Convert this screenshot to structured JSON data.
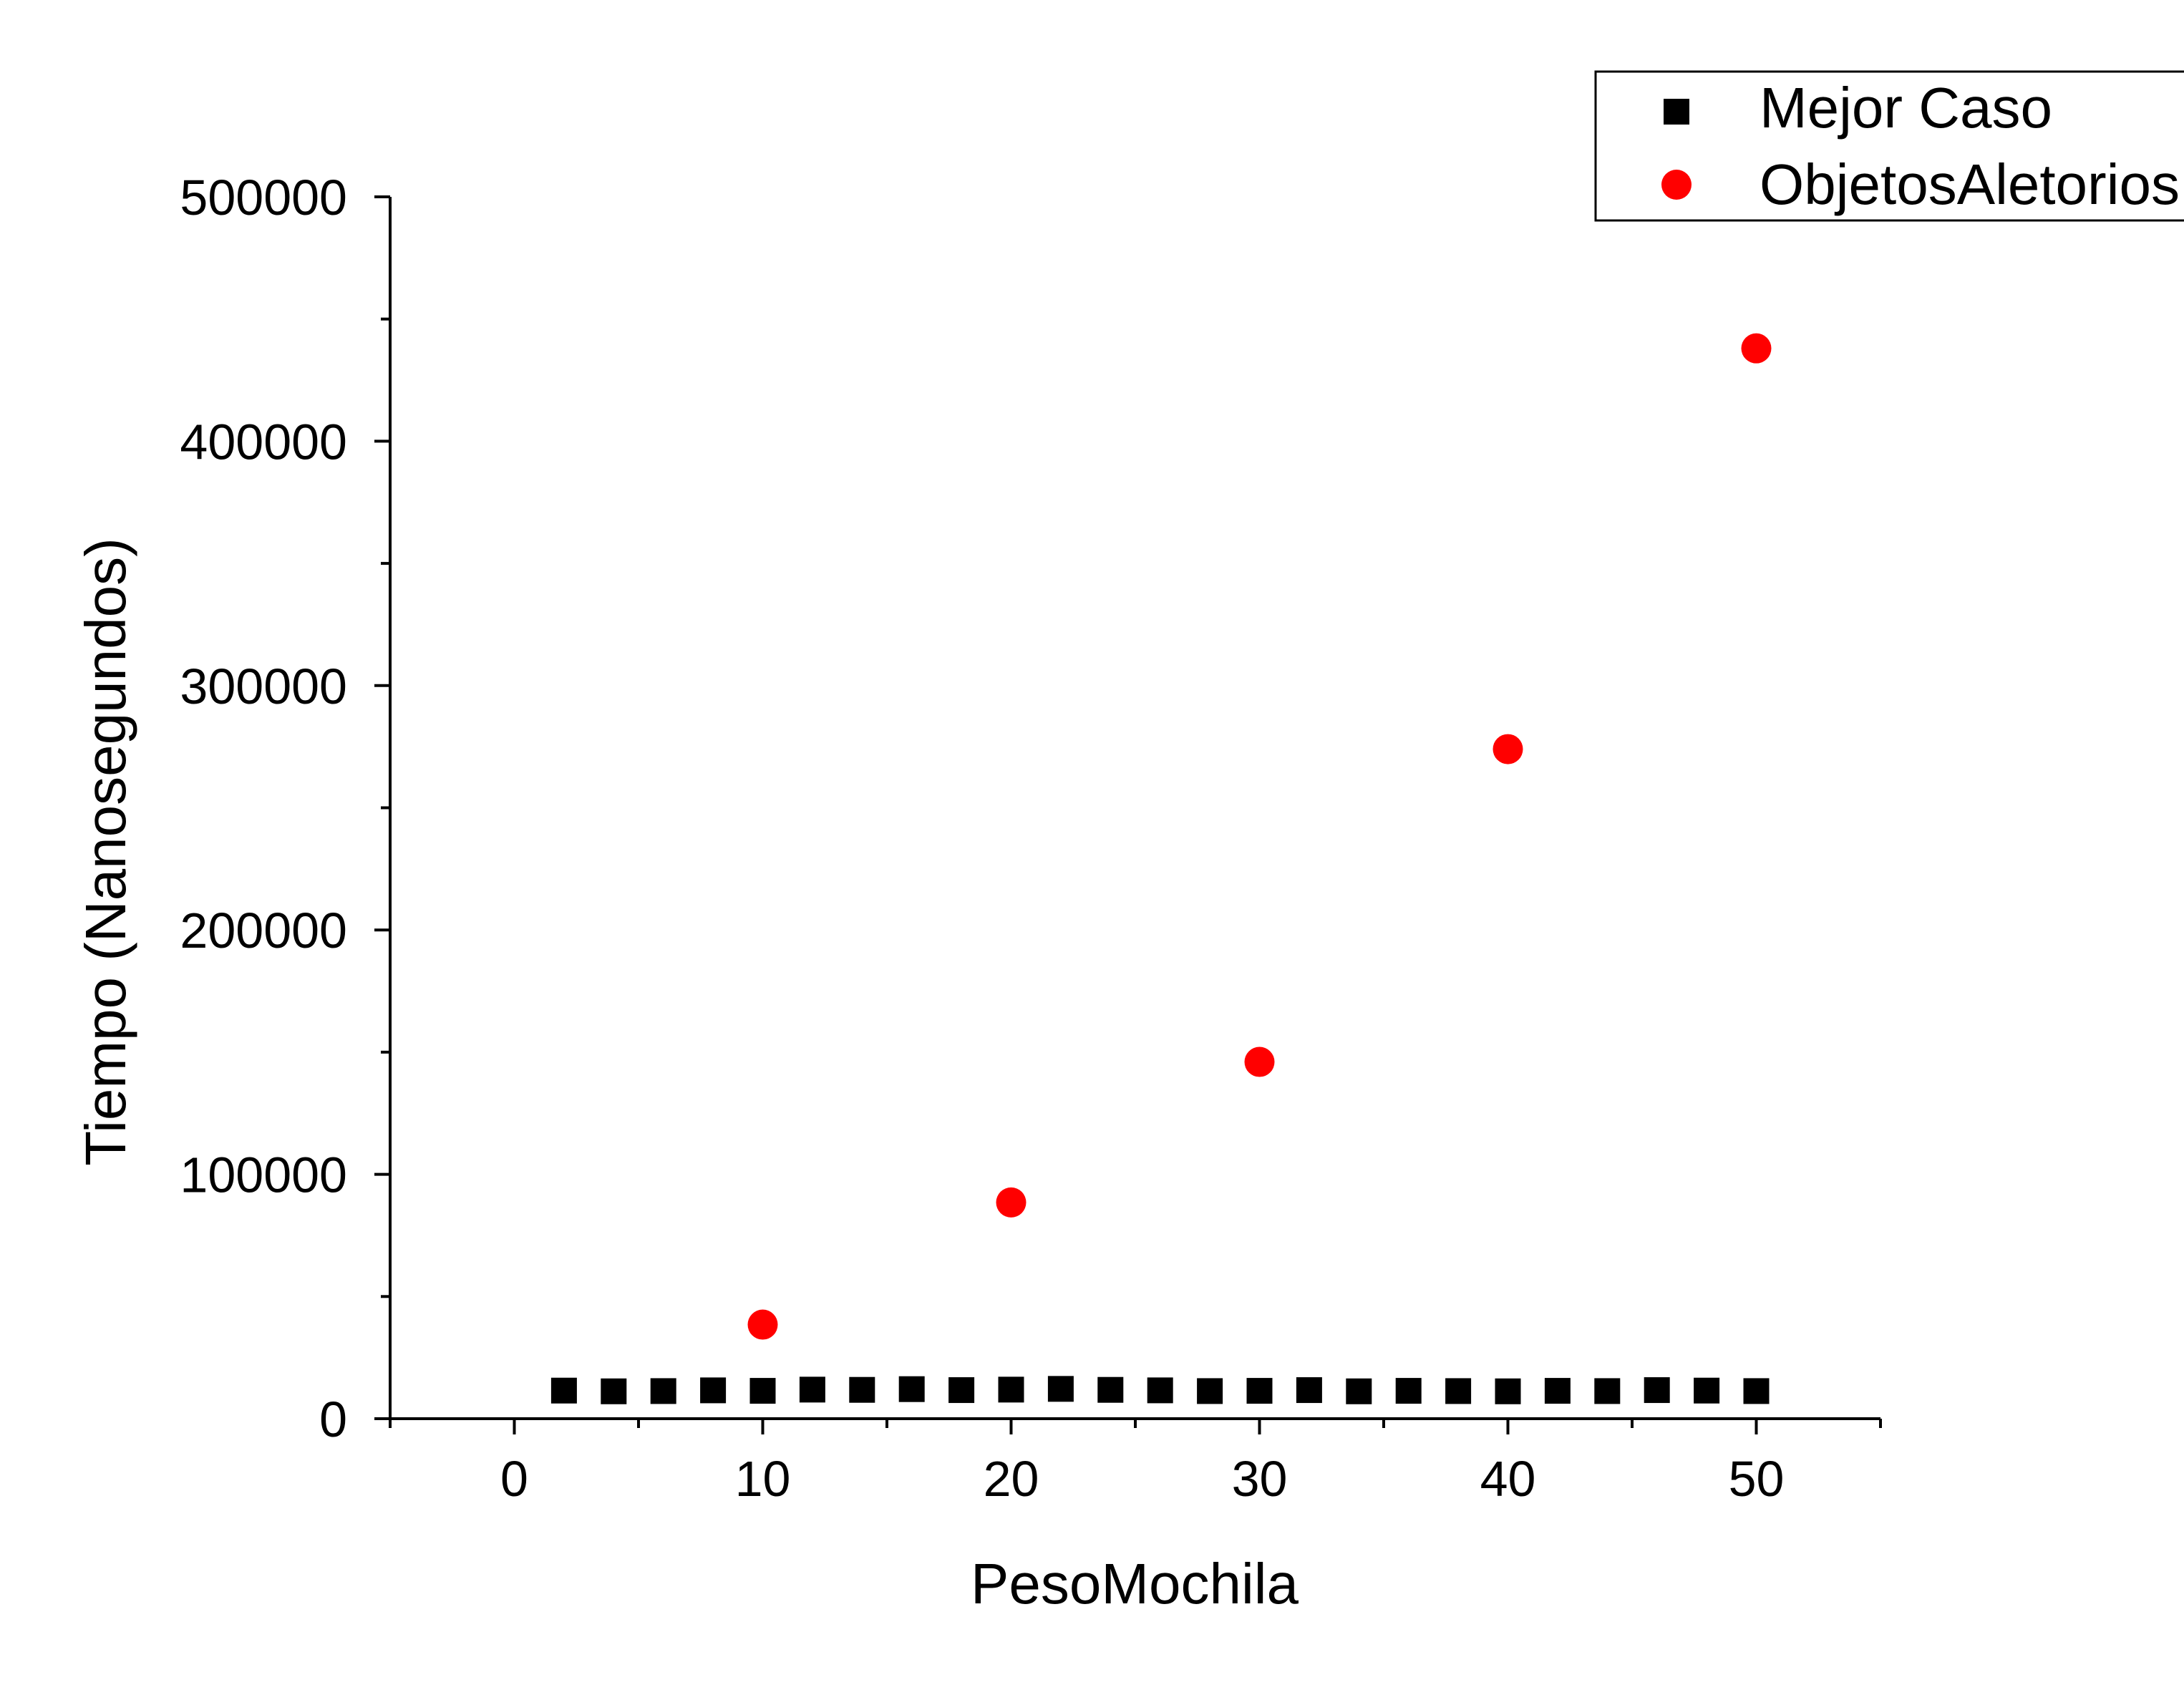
{
  "chart_data": {
    "type": "scatter",
    "title": "",
    "xlabel": "PesoMochila",
    "ylabel": "Tiempo (Nanosegundos)",
    "xlim": [
      -5,
      55
    ],
    "ylim": [
      0,
      500000
    ],
    "xticks": [
      0,
      10,
      20,
      30,
      40,
      50
    ],
    "xtick_labels": [
      "0",
      "10",
      "20",
      "30",
      "40",
      "50"
    ],
    "xminor_ticks": [
      -5,
      5,
      15,
      25,
      35,
      45,
      55
    ],
    "yticks": [
      0,
      100000,
      200000,
      300000,
      400000,
      500000
    ],
    "ytick_labels": [
      "0",
      "100000",
      "200000",
      "300000",
      "400000",
      "500000"
    ],
    "yminor_ticks": [
      50000,
      150000,
      250000,
      350000,
      450000
    ],
    "grid": false,
    "legend_position": "top-right",
    "series": [
      {
        "name": "Mejor Caso",
        "marker": "square",
        "color": "#000000",
        "x": [
          2,
          4,
          6,
          8,
          10,
          12,
          14,
          16,
          18,
          20,
          22,
          24,
          26,
          28,
          30,
          32,
          34,
          36,
          38,
          40,
          42,
          44,
          46,
          48,
          50
        ],
        "y": [
          11500,
          11200,
          11300,
          11600,
          11400,
          11900,
          11800,
          12100,
          11700,
          11900,
          12200,
          11800,
          11600,
          11300,
          11400,
          11700,
          11200,
          11400,
          11300,
          11200,
          11400,
          11300,
          11700,
          11500,
          11300
        ]
      },
      {
        "name": "ObjetosAletorios",
        "marker": "circle",
        "color": "#ff0000",
        "x": [
          10,
          20,
          30,
          40,
          50
        ],
        "y": [
          38500,
          88500,
          146000,
          274000,
          438000
        ]
      }
    ]
  }
}
